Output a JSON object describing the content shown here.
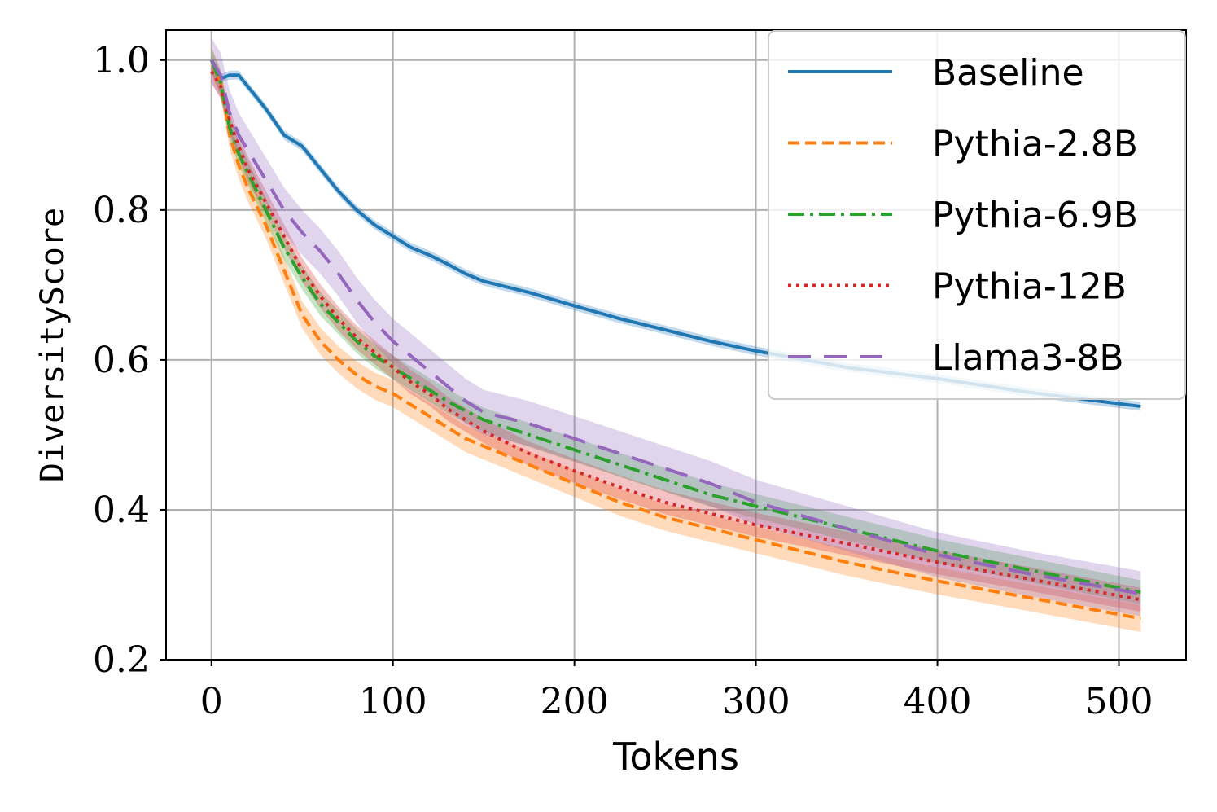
{
  "chart_data": {
    "type": "line",
    "title": "",
    "xlabel": "Tokens",
    "ylabel": "DiversityScore",
    "xlim": [
      -25,
      537
    ],
    "ylim": [
      0.2,
      1.04
    ],
    "xticks": [
      0,
      100,
      200,
      300,
      400,
      500
    ],
    "yticks": [
      0.2,
      0.4,
      0.6,
      0.8,
      1.0
    ],
    "xtick_labels": [
      "0",
      "100",
      "200",
      "300",
      "400",
      "500"
    ],
    "ytick_labels": [
      "0.2",
      "0.4",
      "0.6",
      "0.8",
      "1.0"
    ],
    "grid": true,
    "legend_position": "top-right",
    "x": [
      0,
      5,
      10,
      15,
      20,
      30,
      40,
      50,
      60,
      70,
      80,
      90,
      100,
      110,
      120,
      130,
      140,
      150,
      175,
      200,
      225,
      250,
      275,
      300,
      350,
      400,
      450,
      512
    ],
    "series": [
      {
        "name": "Baseline",
        "color": "#1f77b4",
        "dash": "solid",
        "band": 0.006,
        "values": [
          1.0,
          0.975,
          0.98,
          0.98,
          0.965,
          0.935,
          0.9,
          0.885,
          0.855,
          0.825,
          0.8,
          0.78,
          0.765,
          0.75,
          0.74,
          0.728,
          0.715,
          0.705,
          0.69,
          0.672,
          0.655,
          0.64,
          0.625,
          0.612,
          0.59,
          0.575,
          0.557,
          0.538
        ]
      },
      {
        "name": "Pythia-2.8B",
        "color": "#ff7f0e",
        "dash": "dashed",
        "band": 0.018,
        "values": [
          1.0,
          0.97,
          0.9,
          0.86,
          0.83,
          0.78,
          0.72,
          0.66,
          0.625,
          0.6,
          0.58,
          0.565,
          0.555,
          0.54,
          0.525,
          0.51,
          0.495,
          0.485,
          0.46,
          0.435,
          0.41,
          0.39,
          0.375,
          0.36,
          0.33,
          0.305,
          0.283,
          0.255
        ]
      },
      {
        "name": "Pythia-6.9B",
        "color": "#2ca02c",
        "dash": "dashdot",
        "band": 0.016,
        "values": [
          1.0,
          0.97,
          0.91,
          0.875,
          0.85,
          0.8,
          0.75,
          0.71,
          0.675,
          0.65,
          0.625,
          0.605,
          0.59,
          0.575,
          0.56,
          0.545,
          0.532,
          0.52,
          0.5,
          0.48,
          0.46,
          0.44,
          0.42,
          0.405,
          0.375,
          0.345,
          0.32,
          0.29
        ]
      },
      {
        "name": "Pythia-12B",
        "color": "#d62728",
        "dash": "dotted",
        "band": 0.016,
        "values": [
          0.985,
          0.965,
          0.92,
          0.885,
          0.855,
          0.81,
          0.765,
          0.72,
          0.685,
          0.655,
          0.63,
          0.61,
          0.59,
          0.57,
          0.555,
          0.535,
          0.52,
          0.505,
          0.475,
          0.452,
          0.43,
          0.41,
          0.395,
          0.38,
          0.355,
          0.33,
          0.308,
          0.28
        ]
      },
      {
        "name": "Llama3-8B",
        "color": "#9467bd",
        "dash": "longdash",
        "band": 0.03,
        "values": [
          1.0,
          0.98,
          0.93,
          0.9,
          0.88,
          0.84,
          0.8,
          0.77,
          0.745,
          0.715,
          0.68,
          0.65,
          0.625,
          0.605,
          0.585,
          0.565,
          0.545,
          0.53,
          0.515,
          0.495,
          0.475,
          0.455,
          0.435,
          0.41,
          0.375,
          0.34,
          0.315,
          0.288
        ]
      }
    ]
  }
}
